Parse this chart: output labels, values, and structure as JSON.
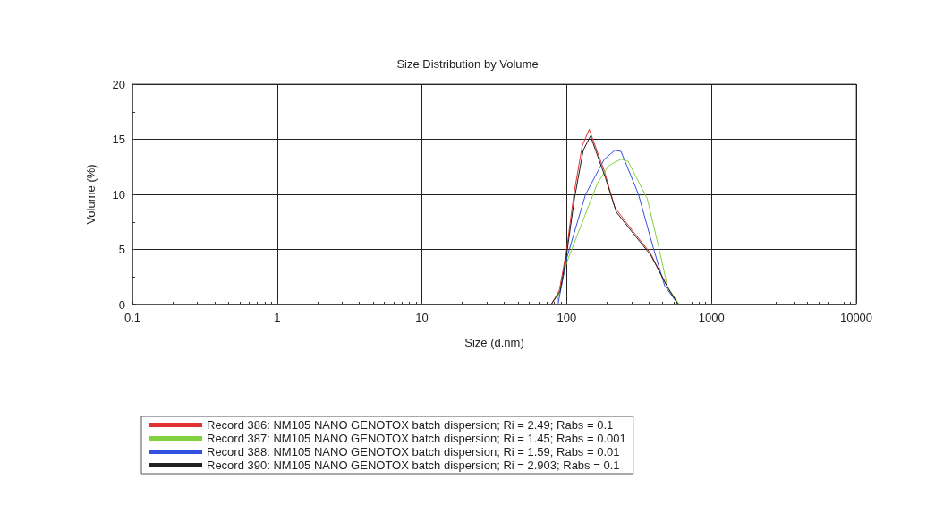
{
  "chart_data": {
    "type": "line",
    "title": "Size Distribution by Volume",
    "xlabel": "Size (d.nm)",
    "ylabel": "Volume (%)",
    "log": "x",
    "grid": true,
    "legend": "bottom",
    "marker": "none",
    "line_style": "solid",
    "xlim": [
      0.1,
      10000
    ],
    "xticks": [
      0.1,
      1,
      10,
      100,
      1000,
      10000
    ],
    "ylim": [
      0,
      20
    ],
    "yticks": [
      0,
      5,
      10,
      15,
      20
    ],
    "series": [
      {
        "name": "Record 386: NM105 NANO GENOTOX batch dispersion; Ri = 2.49; Rabs = 0.1",
        "color": "#e03030",
        "x": [
          78,
          89,
          100,
          112,
          128,
          143,
          182,
          215,
          285,
          377,
          497,
          590
        ],
        "values": [
          0,
          1.3,
          5,
          10,
          14.4,
          15.9,
          12.1,
          8.8,
          6.7,
          4.7,
          1.6,
          0
        ]
      },
      {
        "name": "Record 387: NM105 NANO GENOTOX batch dispersion; Ri = 1.45; Rabs = 0.001",
        "color": "#80d040",
        "x": [
          85,
          100,
          112,
          163,
          195,
          237,
          265,
          360,
          432,
          497,
          600
        ],
        "values": [
          0,
          3.8,
          5.5,
          11,
          12.6,
          13.2,
          13,
          9.6,
          5.2,
          1.6,
          0
        ]
      },
      {
        "name": "Record 388: NM105 NANO GENOTOX batch dispersion; Ri = 1.59; Rabs = 0.01",
        "color": "#3050e0",
        "x": [
          87,
          100,
          135,
          182,
          215,
          237,
          313,
          395,
          475,
          590
        ],
        "values": [
          0,
          4.2,
          10,
          13.2,
          14,
          13.9,
          10,
          5.2,
          1.7,
          0
        ]
      },
      {
        "name": "Record 390: NM105 NANO GENOTOX batch dispersion; Ri = 2.903; Rabs = 0.1",
        "color": "#202020",
        "x": [
          0.4,
          10,
          70,
          78,
          90,
          100,
          113,
          130,
          146,
          185,
          220,
          290,
          380,
          500,
          590,
          1000,
          10000
        ],
        "values": [
          0,
          0,
          0,
          0,
          1.2,
          4.6,
          9.6,
          14,
          15.3,
          11.5,
          8.4,
          6.4,
          4.5,
          1.5,
          0,
          0,
          0
        ]
      }
    ]
  }
}
